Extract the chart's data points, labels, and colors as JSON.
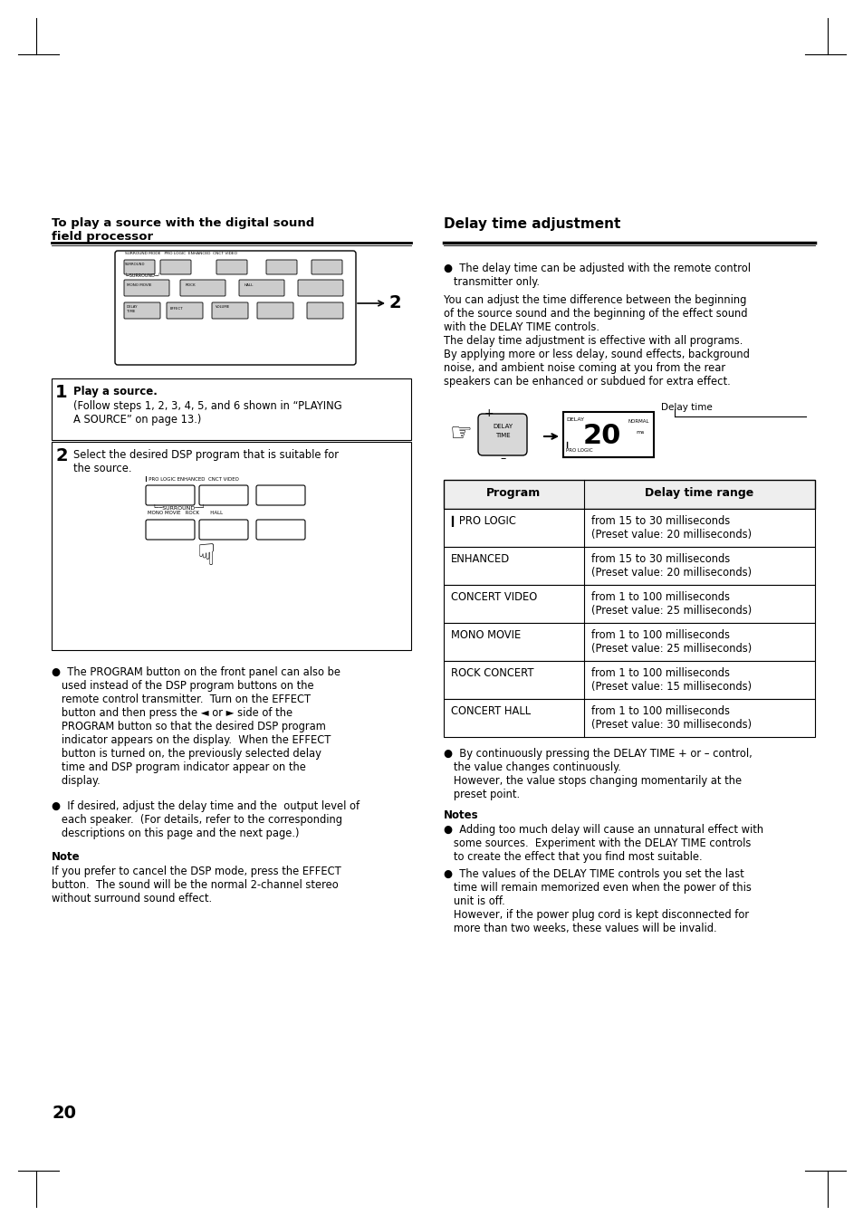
{
  "page_bg": "#ffffff",
  "page_number": "20",
  "left_section_title": "To play a source with the digital sound\nfield processor",
  "right_section_title": "Delay time adjustment",
  "step1_bold": "Play a source.",
  "step1_text": "(Follow steps 1, 2, 3, 4, 5, and 6 shown in “PLAYING\nA SOURCE” on page 13.)",
  "step2_text": "Select the desired DSP program that is suitable for\nthe source.",
  "bullet_program": "●  The PROGRAM button on the front panel can also be\n   used instead of the DSP program buttons on the\n   remote control transmitter.  Turn on the EFFECT\n   button and then press the ◄ or ► side of the\n   PROGRAM button so that the desired DSP program\n   indicator appears on the display.  When the EFFECT\n   button is turned on, the previously selected delay\n   time and DSP program indicator appear on the\n   display.",
  "bottom_bullet_left": "●  If desired, adjust the delay time and the  output level of\n   each speaker.  (For details, refer to the corresponding\n   descriptions on this page and the next page.)",
  "note_title": "Note",
  "note_text": "If you prefer to cancel the DSP mode, press the EFFECT\nbutton.  The sound will be the normal 2-channel stereo\nwithout surround sound effect.",
  "right_bullet1": "●  The delay time can be adjusted with the remote control\n   transmitter only.",
  "right_para1": "You can adjust the time difference between the beginning\nof the source sound and the beginning of the effect sound\nwith the DELAY TIME controls.\nThe delay time adjustment is effective with all programs.\nBy applying more or less delay, sound effects, background\nnoise, and ambient noise coming at you from the rear\nspeakers can be enhanced or subdued for extra effect.",
  "delay_time_label": "Delay time",
  "right_bottom_bullet1": "●  By continuously pressing the DELAY TIME + or – control,\n   the value changes continuously.\n   However, the value stops changing momentarily at the\n   preset point.",
  "notes_title": "Notes",
  "notes_bullet1": "●  Adding too much delay will cause an unnatural effect with\n   some sources.  Experiment with the DELAY TIME controls\n   to create the effect that you find most suitable.",
  "notes_bullet2": "●  The values of the DELAY TIME controls you set the last\n   time will remain memorized even when the power of this\n   unit is off.\n   However, if the power plug cord is kept disconnected for\n   more than two weeks, these values will be invalid.",
  "table_headers": [
    "Program",
    "Delay time range"
  ],
  "table_rows": [
    [
      "▎PRO LOGIC",
      "from 15 to 30 milliseconds\n(Preset value: 20 milliseconds)"
    ],
    [
      "ENHANCED",
      "from 15 to 30 milliseconds\n(Preset value: 20 milliseconds)"
    ],
    [
      "CONCERT VIDEO",
      "from 1 to 100 milliseconds\n(Preset value: 25 milliseconds)"
    ],
    [
      "MONO MOVIE",
      "from 1 to 100 milliseconds\n(Preset value: 25 milliseconds)"
    ],
    [
      "ROCK CONCERT",
      "from 1 to 100 milliseconds\n(Preset value: 15 milliseconds)"
    ],
    [
      "CONCERT HALL",
      "from 1 to 100 milliseconds\n(Preset value: 30 milliseconds)"
    ]
  ]
}
